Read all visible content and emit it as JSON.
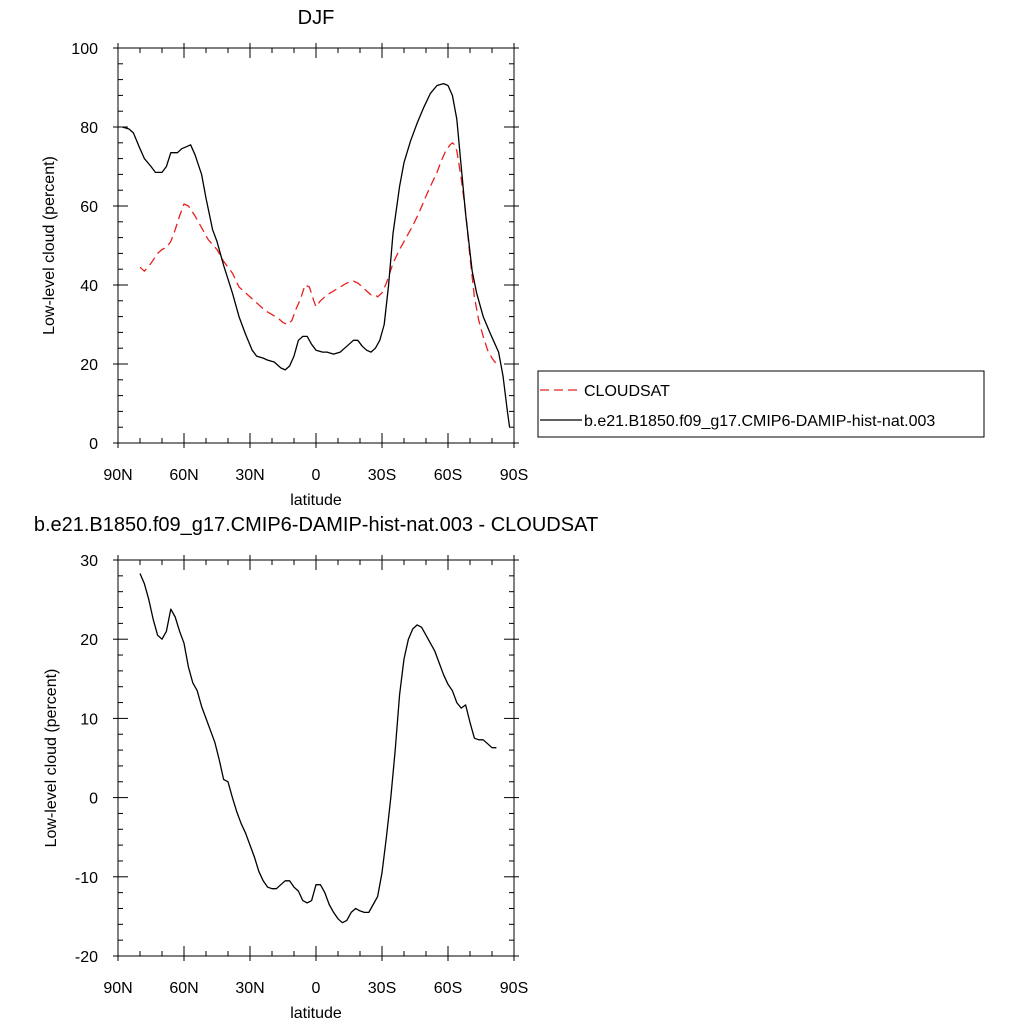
{
  "chart_data": [
    {
      "type": "line",
      "title": "DJF",
      "xlabel": "latitude",
      "ylabel": "Low-level cloud (percent)",
      "xlim": [
        90,
        -90
      ],
      "ylim": [
        0,
        100
      ],
      "xticks": [
        90,
        60,
        30,
        0,
        -30,
        -60,
        -90
      ],
      "xtick_labels": [
        "90N",
        "60N",
        "30N",
        "0",
        "30S",
        "60S",
        "90S"
      ],
      "yticks": [
        0,
        20,
        40,
        60,
        80,
        100
      ],
      "ytick_labels": [
        "0",
        "20",
        "40",
        "60",
        "80",
        "100"
      ],
      "legend_position": "right",
      "series": [
        {
          "name": "CLOUDSAT",
          "color": "#e8201e",
          "dash": "dashed",
          "x": [
            80,
            78,
            75,
            72,
            70,
            68,
            66,
            64,
            62,
            60,
            58,
            55,
            52,
            49,
            45,
            42,
            38,
            35,
            30,
            26,
            23,
            20,
            17,
            15,
            13,
            11,
            9,
            7,
            5,
            3,
            1,
            0,
            -2,
            -5,
            -8,
            -11,
            -14,
            -17,
            -19,
            -22,
            -25,
            -27,
            -28,
            -30,
            -32,
            -35,
            -38,
            -41,
            -44,
            -47,
            -50,
            -52,
            -55,
            -57,
            -59,
            -61,
            -62,
            -63,
            -64,
            -66,
            -68,
            -70,
            -72,
            -74,
            -76,
            -78,
            -80,
            -82
          ],
          "y": [
            44.5,
            43.5,
            45.5,
            48,
            49,
            49.5,
            51,
            54,
            57.5,
            60.5,
            60,
            57.5,
            54.5,
            51.5,
            49,
            46,
            43,
            39.5,
            37,
            35,
            33.5,
            32.5,
            31.5,
            30.5,
            30,
            31,
            34,
            36.5,
            40,
            39.5,
            36,
            34.5,
            36,
            37.5,
            38.5,
            39.5,
            40.5,
            41,
            40.5,
            39,
            37.5,
            37.5,
            37,
            38,
            40.5,
            45.5,
            49,
            52,
            55,
            58.5,
            62.5,
            65,
            68.5,
            71.5,
            74,
            75.5,
            76,
            75.5,
            74,
            67,
            58.5,
            47,
            37,
            31,
            27,
            23.5,
            21.5,
            20
          ]
        },
        {
          "name": "b.e21.B1850.f09_g17.CMIP6-DAMIP-hist-nat.003",
          "color": "#000000",
          "dash": "solid",
          "x": [
            88,
            85,
            83,
            80,
            78,
            75,
            73,
            70,
            68,
            66,
            63,
            61,
            59,
            57,
            55,
            52,
            50,
            47,
            45,
            42,
            38,
            35,
            32,
            29,
            27,
            24,
            22,
            19,
            16,
            14,
            12,
            10,
            8,
            6,
            4,
            2,
            0,
            -3,
            -5,
            -8,
            -11,
            -13,
            -15,
            -17,
            -19,
            -21,
            -23,
            -25,
            -27,
            -29,
            -31,
            -33,
            -35,
            -38,
            -40,
            -43,
            -46,
            -49,
            -52,
            -55,
            -58,
            -60,
            -62,
            -64,
            -66,
            -68,
            -71,
            -73,
            -76,
            -79,
            -81,
            -83,
            -85,
            -87,
            -88
          ],
          "y": [
            80,
            79.5,
            78.5,
            74.5,
            72,
            70,
            68.5,
            68.5,
            70,
            73.5,
            73.5,
            74.5,
            75,
            75.5,
            73,
            68,
            62,
            54,
            51,
            45,
            38,
            32,
            27.5,
            23.5,
            22,
            21.5,
            21,
            20.5,
            19,
            18.5,
            19.5,
            22,
            26,
            27,
            27,
            25,
            23.5,
            23,
            23,
            22.5,
            23,
            24,
            25,
            26,
            26,
            24.5,
            23.5,
            23,
            24,
            26,
            30,
            40,
            53,
            65,
            71,
            76.5,
            81,
            85,
            88.5,
            90.5,
            91,
            90.5,
            88,
            82,
            70,
            58,
            43.5,
            38,
            32,
            28,
            25.5,
            23,
            17,
            8,
            4
          ]
        }
      ]
    },
    {
      "type": "line",
      "title": "b.e21.B1850.f09_g17.CMIP6-DAMIP-hist-nat.003 - CLOUDSAT",
      "xlabel": "latitude",
      "ylabel": "Low-level cloud (percent)",
      "xlim": [
        90,
        -90
      ],
      "ylim": [
        -20,
        30
      ],
      "xticks": [
        90,
        60,
        30,
        0,
        -30,
        -60,
        -90
      ],
      "xtick_labels": [
        "90N",
        "60N",
        "30N",
        "0",
        "30S",
        "60S",
        "90S"
      ],
      "yticks": [
        -20,
        -10,
        0,
        10,
        20,
        30
      ],
      "ytick_labels": [
        "-20",
        "-10",
        "0",
        "10",
        "20",
        "30"
      ],
      "series": [
        {
          "name": "",
          "color": "#000000",
          "dash": "solid",
          "x": [
            80,
            78,
            76,
            74,
            72,
            70,
            68,
            66,
            64,
            62,
            60,
            58,
            56,
            54,
            52,
            50,
            48,
            46,
            44,
            42,
            40,
            38,
            36,
            34,
            32,
            30,
            28,
            26,
            24,
            22,
            20,
            18,
            16,
            14,
            12,
            10,
            8,
            6,
            4,
            2,
            0,
            -2,
            -4,
            -6,
            -8,
            -10,
            -12,
            -14,
            -16,
            -18,
            -20,
            -22,
            -24,
            -26,
            -28,
            -30,
            -32,
            -34,
            -36,
            -38,
            -40,
            -42,
            -44,
            -46,
            -48,
            -50,
            -52,
            -54,
            -56,
            -58,
            -60,
            -62,
            -64,
            -66,
            -68,
            -70,
            -72,
            -74,
            -76,
            -78,
            -80,
            -82
          ],
          "y": [
            28.3,
            27,
            25,
            22.5,
            20.5,
            20,
            21,
            23.8,
            22.8,
            21,
            19.5,
            16.5,
            14.5,
            13.5,
            11.5,
            10,
            8.5,
            7,
            4.8,
            2.3,
            2,
            0,
            -1.8,
            -3.3,
            -4.5,
            -6,
            -7.5,
            -9.3,
            -10.5,
            -11.3,
            -11.5,
            -11.5,
            -11,
            -10.5,
            -10.5,
            -11.3,
            -11.8,
            -13,
            -13.3,
            -13,
            -11,
            -11,
            -12,
            -13.5,
            -14.5,
            -15.3,
            -15.8,
            -15.5,
            -14.5,
            -14,
            -14.3,
            -14.5,
            -14.5,
            -13.5,
            -12.5,
            -9.5,
            -5,
            0,
            6,
            13,
            17.5,
            20,
            21.3,
            21.8,
            21.5,
            20.5,
            19.5,
            18.5,
            17,
            15.5,
            14.3,
            13.5,
            12,
            11.3,
            11.7,
            9.5,
            7.5,
            7.3,
            7.3,
            6.8,
            6.3,
            6.3
          ]
        }
      ]
    }
  ]
}
